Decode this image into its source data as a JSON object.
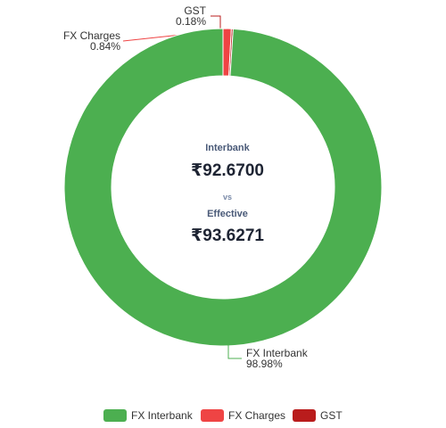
{
  "chart_data": {
    "type": "doughnut",
    "slices": [
      {
        "name": "FX Charges",
        "value": 0.84,
        "label": "0.84%",
        "color": "#ef4444"
      },
      {
        "name": "GST",
        "value": 0.18,
        "label": "0.18%",
        "color": "#b91c1c"
      },
      {
        "name": "FX Interbank",
        "value": 98.98,
        "label": "98.98%",
        "color": "#4caf50"
      }
    ],
    "legend": {
      "position": "bottom",
      "items": [
        {
          "name": "FX Interbank",
          "color": "#4caf50"
        },
        {
          "name": "FX Charges",
          "color": "#ef4444"
        },
        {
          "name": "GST",
          "color": "#b91c1c"
        }
      ]
    },
    "center": {
      "label1": "Interbank",
      "value1": "₹92.6700",
      "vs": "vs",
      "label2": "Effective",
      "value2": "₹93.6271"
    }
  }
}
